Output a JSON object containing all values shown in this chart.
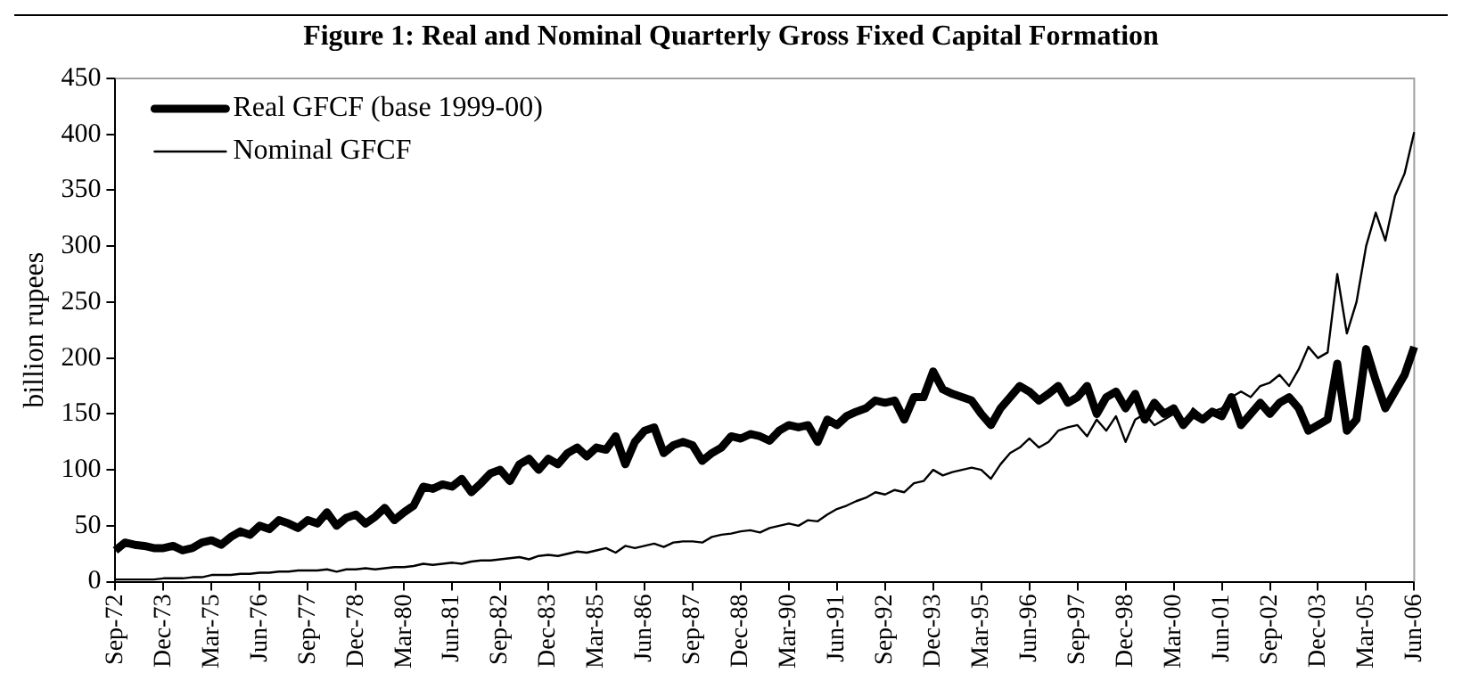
{
  "chart_data": {
    "type": "line",
    "title": "Figure 1: Real and Nominal Quarterly Gross Fixed Capital Formation",
    "ylabel": "billion rupees",
    "categories": [
      "Sep-72",
      null,
      null,
      null,
      null,
      "Dec-73",
      null,
      null,
      null,
      null,
      "Mar-75",
      null,
      null,
      null,
      null,
      "Jun-76",
      null,
      null,
      null,
      null,
      "Sep-77",
      null,
      null,
      null,
      null,
      "Dec-78",
      null,
      null,
      null,
      null,
      "Mar-80",
      null,
      null,
      null,
      null,
      "Jun-81",
      null,
      null,
      null,
      null,
      "Sep-82",
      null,
      null,
      null,
      null,
      "Dec-83",
      null,
      null,
      null,
      null,
      "Mar-85",
      null,
      null,
      null,
      null,
      "Jun-86",
      null,
      null,
      null,
      null,
      "Sep-87",
      null,
      null,
      null,
      null,
      "Dec-88",
      null,
      null,
      null,
      null,
      "Mar-90",
      null,
      null,
      null,
      null,
      "Jun-91",
      null,
      null,
      null,
      null,
      "Sep-92",
      null,
      null,
      null,
      null,
      "Dec-93",
      null,
      null,
      null,
      null,
      "Mar-95",
      null,
      null,
      null,
      null,
      "Jun-96",
      null,
      null,
      null,
      null,
      "Sep-97",
      null,
      null,
      null,
      null,
      "Dec-98",
      null,
      null,
      null,
      null,
      "Mar-00",
      null,
      null,
      null,
      null,
      "Jun-01",
      null,
      null,
      null,
      null,
      "Sep-02",
      null,
      null,
      null,
      null,
      "Dec-03",
      null,
      null,
      null,
      null,
      "Mar-05",
      null,
      null,
      null,
      null,
      "Jun-06"
    ],
    "series": [
      {
        "name": "Real GFCF (base 1999-00)",
        "color": "#000000",
        "values": [
          28,
          35,
          33,
          32,
          30,
          30,
          32,
          28,
          30,
          35,
          37,
          33,
          40,
          45,
          42,
          50,
          47,
          55,
          52,
          48,
          55,
          52,
          62,
          50,
          57,
          60,
          52,
          58,
          66,
          55,
          62,
          68,
          85,
          83,
          87,
          85,
          92,
          80,
          88,
          97,
          100,
          90,
          105,
          110,
          100,
          110,
          105,
          115,
          120,
          112,
          120,
          118,
          130,
          105,
          125,
          135,
          138,
          115,
          122,
          125,
          122,
          108,
          115,
          120,
          130,
          128,
          132,
          130,
          126,
          135,
          140,
          138,
          140,
          125,
          145,
          140,
          148,
          152,
          155,
          162,
          160,
          162,
          145,
          165,
          165,
          188,
          172,
          168,
          165,
          162,
          150,
          140,
          155,
          165,
          175,
          170,
          162,
          168,
          175,
          160,
          165,
          175,
          150,
          165,
          170,
          155,
          168,
          145,
          160,
          150,
          155,
          140,
          150,
          145,
          152,
          148,
          165,
          140,
          150,
          160,
          150,
          160,
          165,
          155,
          135,
          140,
          145,
          195,
          135,
          145,
          208,
          180,
          155,
          170,
          185,
          210
        ]
      },
      {
        "name": "Nominal GFCF",
        "color": "#000000",
        "values": [
          2,
          2,
          2,
          2,
          2,
          3,
          3,
          3,
          4,
          4,
          6,
          6,
          6,
          7,
          7,
          8,
          8,
          9,
          9,
          10,
          10,
          10,
          11,
          9,
          11,
          11,
          12,
          11,
          12,
          13,
          13,
          14,
          16,
          15,
          16,
          17,
          16,
          18,
          19,
          19,
          20,
          21,
          22,
          20,
          23,
          24,
          23,
          25,
          27,
          26,
          28,
          30,
          26,
          32,
          30,
          32,
          34,
          31,
          35,
          36,
          36,
          35,
          40,
          42,
          43,
          45,
          46,
          44,
          48,
          50,
          52,
          50,
          55,
          54,
          60,
          65,
          68,
          72,
          75,
          80,
          78,
          82,
          80,
          88,
          90,
          100,
          95,
          98,
          100,
          102,
          100,
          92,
          105,
          115,
          120,
          128,
          120,
          125,
          135,
          138,
          140,
          130,
          145,
          135,
          148,
          125,
          145,
          150,
          140,
          145,
          150,
          140,
          155,
          148,
          152,
          155,
          165,
          170,
          165,
          175,
          178,
          185,
          175,
          190,
          210,
          200,
          205,
          275,
          222,
          250,
          300,
          330,
          305,
          345,
          365,
          402
        ]
      }
    ],
    "ylim": [
      0,
      450
    ],
    "yticks": [
      0,
      50,
      100,
      150,
      200,
      250,
      300,
      350,
      400,
      450
    ],
    "grid": false,
    "legend": "top left"
  }
}
